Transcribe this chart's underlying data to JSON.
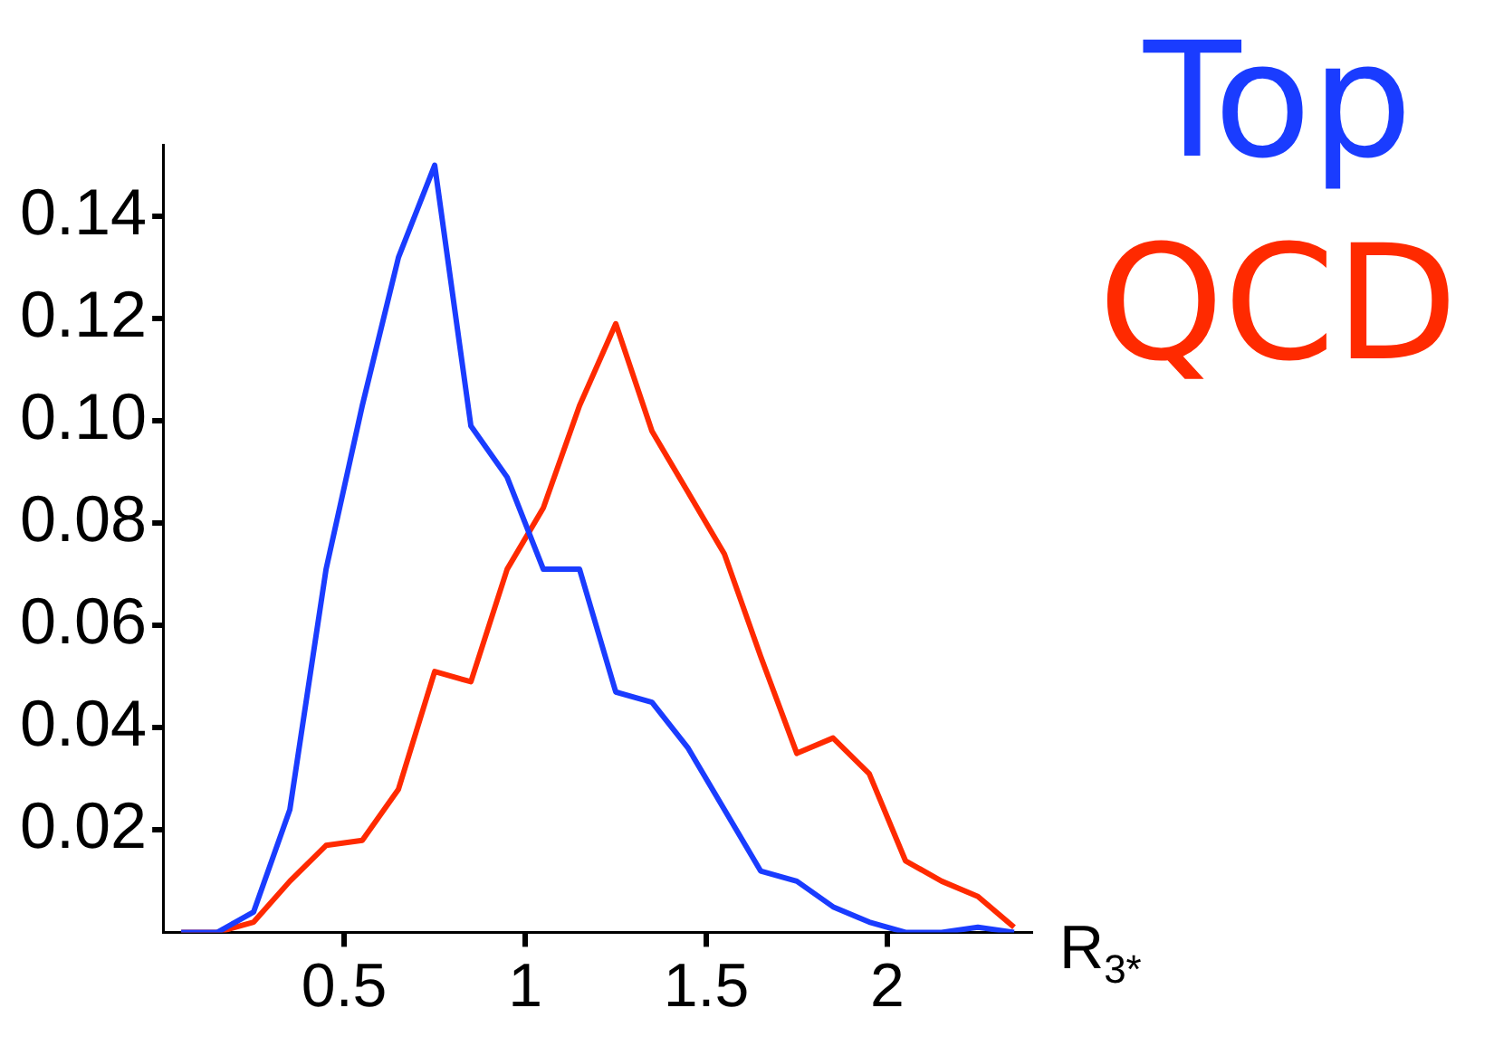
{
  "chart_data": {
    "type": "line",
    "xlabel": "R$_{3*}$",
    "legend": "top right",
    "grid": false,
    "marker": "none",
    "line_style": "solid",
    "x": [
      0.05,
      0.15,
      0.25,
      0.35,
      0.45,
      0.55,
      0.65,
      0.75,
      0.85,
      0.95,
      1.05,
      1.15,
      1.25,
      1.35,
      1.45,
      1.55,
      1.65,
      1.75,
      1.85,
      1.95,
      2.05,
      2.15,
      2.25,
      2.35
    ],
    "xlim": [
      0,
      2.4
    ],
    "xticks": [
      0.5,
      1,
      1.5,
      2
    ],
    "ylim": [
      0,
      0.154
    ],
    "yticks": [
      0.02,
      0.04,
      0.06,
      0.08,
      {
        "value": 0.1,
        "label": "0.10"
      },
      0.12,
      0.14
    ],
    "series": [
      {
        "name": "Top",
        "color": "#1a3cff",
        "values": [
          0,
          0,
          0.004,
          0.024,
          0.071,
          0.103,
          0.132,
          0.15,
          0.099,
          0.089,
          0.071,
          0.071,
          0.047,
          0.045,
          0.036,
          0.024,
          0.012,
          0.01,
          0.005,
          0.002,
          0,
          0,
          0.001,
          0
        ]
      },
      {
        "name": "QCD",
        "color": "#ff2a00",
        "values": [
          0,
          0,
          0.002,
          0.01,
          0.017,
          0.018,
          0.028,
          0.051,
          0.049,
          0.071,
          0.083,
          0.103,
          0.119,
          0.098,
          0.086,
          0.074,
          0.054,
          0.035,
          0.038,
          0.031,
          0.014,
          0.01,
          0.007,
          0.001
        ]
      }
    ]
  }
}
